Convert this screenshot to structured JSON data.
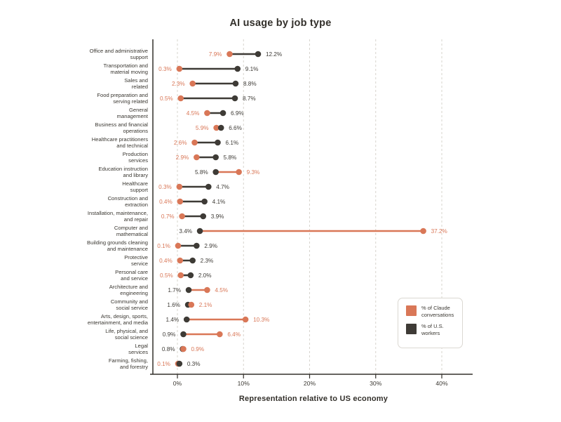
{
  "title": "AI usage by job type",
  "axis_title": "Representation relative to US economy",
  "colors": {
    "claude_orange": "#D97757",
    "workers_dark": "#3E3B36",
    "grid": "#D7D4CE",
    "axis": "#33302B",
    "label_text": "#3B3832"
  },
  "legend": {
    "items": [
      {
        "key": "claude",
        "lines": [
          "% of Claude",
          "conversations"
        ],
        "color": "#D97757"
      },
      {
        "key": "workers",
        "lines": [
          "% of U.S.",
          "workers"
        ],
        "color": "#3E3B36"
      }
    ]
  },
  "chart_data": {
    "type": "dumbbell",
    "title": "AI usage by job type",
    "xlabel": "Representation relative to US economy",
    "x_axis": {
      "tick_labels": [
        "0%",
        "10%",
        "20%",
        "30%",
        "40%"
      ],
      "tick_values": [
        0,
        10,
        20,
        30,
        40
      ],
      "xlim": [
        0,
        44.5
      ],
      "grid": "dashed-vertical"
    },
    "legend_position": "right-middle",
    "categories": [
      [
        "Office and administrative",
        "support"
      ],
      [
        "Transportation and",
        "material moving"
      ],
      [
        "Sales and",
        "related"
      ],
      [
        "Food preparation and",
        "serving related"
      ],
      [
        "General",
        "management"
      ],
      [
        "Business and financial",
        "operations"
      ],
      [
        "Healthcare practitioners",
        "and technical"
      ],
      [
        "Production",
        "services"
      ],
      [
        "Education instruction",
        "and library"
      ],
      [
        "Healthcare",
        "support"
      ],
      [
        "Construction and",
        "extraction"
      ],
      [
        "Installation, maintenance,",
        "and repair"
      ],
      [
        "Computer and",
        "mathematical"
      ],
      [
        "Building grounds cleaning",
        "and maintenance"
      ],
      [
        "Protective",
        "service"
      ],
      [
        "Personal care",
        "and service"
      ],
      [
        "Architecture and",
        "engineering"
      ],
      [
        "Community and",
        "social service"
      ],
      [
        "Arts, design, sports,",
        "entertainment, and media"
      ],
      [
        "Life, physical, and",
        "social science"
      ],
      [
        "Legal",
        "services"
      ],
      [
        "Farming, fishing,",
        "and forestry"
      ]
    ],
    "series": [
      {
        "name": "% of Claude conversations",
        "color": "#D97757",
        "values": [
          7.9,
          0.3,
          2.3,
          0.5,
          4.5,
          5.9,
          2.6,
          2.9,
          9.3,
          0.3,
          0.4,
          0.7,
          37.2,
          0.1,
          0.4,
          0.5,
          4.5,
          2.1,
          10.3,
          6.4,
          0.9,
          0.1
        ]
      },
      {
        "name": "% of U.S. workers",
        "color": "#3E3B36",
        "values": [
          12.2,
          9.1,
          8.8,
          8.7,
          6.9,
          6.6,
          6.1,
          5.8,
          5.8,
          4.7,
          4.1,
          3.9,
          3.4,
          2.9,
          2.3,
          2.0,
          1.7,
          1.6,
          1.4,
          0.9,
          0.8,
          0.3
        ]
      }
    ]
  }
}
